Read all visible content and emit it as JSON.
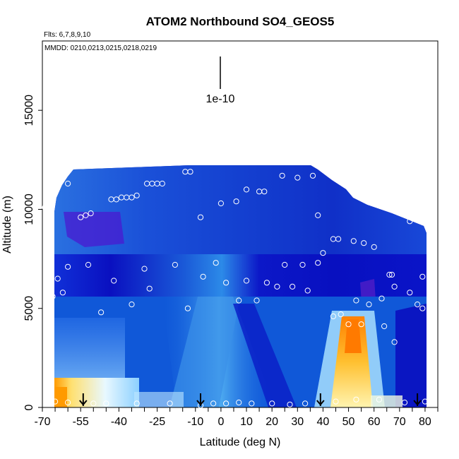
{
  "chart_data": {
    "type": "heatmap",
    "title": "ATOM2 Northbound SO4_GEOS5",
    "flights_note": "Flts: 6,7,8,9,10",
    "mmdd_note": "MMDD: 0210,0213,0215,0218,0219",
    "xlabel": "Latitude (deg N)",
    "ylabel": "Altitude (m)",
    "xlim": [
      -70,
      85
    ],
    "ylim": [
      0,
      18500
    ],
    "x_tick_labels": [
      "-70",
      "-55",
      "-40",
      "-25",
      "-10",
      "0",
      "10",
      "20",
      "30",
      "40",
      "50",
      "60",
      "70",
      "80"
    ],
    "x_ticks": [
      -70,
      -55,
      -40,
      -25,
      -10,
      0,
      10,
      20,
      30,
      40,
      50,
      60,
      70,
      80
    ],
    "y_tick_labels": [
      "0",
      "5000",
      "10000",
      "15000"
    ],
    "y_ticks": [
      0,
      5000,
      10000,
      15000
    ],
    "scale_bar_label": "1e-10",
    "grid": false,
    "colorscale": [
      "#0000c8",
      "#1e5fe6",
      "#4aa8f0",
      "#b8e8ff",
      "#ffffc8",
      "#ffd040",
      "#ff8c00",
      "#8a2be2"
    ],
    "profile_latitudes": [
      -54,
      -8,
      39,
      77
    ],
    "sample_points": [
      {
        "x": -68,
        "y": 200
      },
      {
        "x": -65,
        "y": 300
      },
      {
        "x": -60,
        "y": 250
      },
      {
        "x": -50,
        "y": 200
      },
      {
        "x": -45,
        "y": 200
      },
      {
        "x": -33,
        "y": 200
      },
      {
        "x": -20,
        "y": 200
      },
      {
        "x": -8,
        "y": 100
      },
      {
        "x": -3,
        "y": 200
      },
      {
        "x": 2,
        "y": 200
      },
      {
        "x": 7,
        "y": 250
      },
      {
        "x": 12,
        "y": 200
      },
      {
        "x": 20,
        "y": 200
      },
      {
        "x": 27,
        "y": 150
      },
      {
        "x": 33,
        "y": 200
      },
      {
        "x": 45,
        "y": 300
      },
      {
        "x": 53,
        "y": 400
      },
      {
        "x": 62,
        "y": 400
      },
      {
        "x": 72,
        "y": 250
      },
      {
        "x": 80,
        "y": 300
      },
      {
        "x": -68,
        "y": 5000
      },
      {
        "x": -66,
        "y": 5600
      },
      {
        "x": -62,
        "y": 5800
      },
      {
        "x": -47,
        "y": 4800
      },
      {
        "x": -35,
        "y": 5200
      },
      {
        "x": -28,
        "y": 6000
      },
      {
        "x": -13,
        "y": 5000
      },
      {
        "x": -7,
        "y": 6600
      },
      {
        "x": 2,
        "y": 6300
      },
      {
        "x": 7,
        "y": 5400
      },
      {
        "x": 10,
        "y": 6400
      },
      {
        "x": 14,
        "y": 5400
      },
      {
        "x": 18,
        "y": 6300
      },
      {
        "x": 22,
        "y": 6100
      },
      {
        "x": 28,
        "y": 6100
      },
      {
        "x": 34,
        "y": 5900
      },
      {
        "x": 44,
        "y": 4600
      },
      {
        "x": 47,
        "y": 4700
      },
      {
        "x": 50,
        "y": 4200
      },
      {
        "x": 53,
        "y": 5400
      },
      {
        "x": 55,
        "y": 4200
      },
      {
        "x": 58,
        "y": 5200
      },
      {
        "x": 63,
        "y": 5500
      },
      {
        "x": 64,
        "y": 4100
      },
      {
        "x": 68,
        "y": 6100
      },
      {
        "x": 68,
        "y": 3300
      },
      {
        "x": 74,
        "y": 5800
      },
      {
        "x": 77,
        "y": 5200
      },
      {
        "x": 79,
        "y": 5000
      },
      {
        "x": 82,
        "y": 4100
      },
      {
        "x": -68,
        "y": 6300
      },
      {
        "x": -64,
        "y": 6500
      },
      {
        "x": -60,
        "y": 7100
      },
      {
        "x": -52,
        "y": 7200
      },
      {
        "x": -42,
        "y": 6400
      },
      {
        "x": -30,
        "y": 7000
      },
      {
        "x": -18,
        "y": 7200
      },
      {
        "x": -2,
        "y": 7300
      },
      {
        "x": 25,
        "y": 7200
      },
      {
        "x": 32,
        "y": 7200
      },
      {
        "x": 38,
        "y": 7300
      },
      {
        "x": 40,
        "y": 7800
      },
      {
        "x": 44,
        "y": 8500
      },
      {
        "x": 46,
        "y": 8500
      },
      {
        "x": 52,
        "y": 8400
      },
      {
        "x": 56,
        "y": 8300
      },
      {
        "x": 60,
        "y": 8100
      },
      {
        "x": 66,
        "y": 6700
      },
      {
        "x": 67,
        "y": 6700
      },
      {
        "x": 74,
        "y": 9400
      },
      {
        "x": 79,
        "y": 6600
      },
      {
        "x": 82,
        "y": 8600
      },
      {
        "x": -69,
        "y": 10100
      },
      {
        "x": -68,
        "y": 10600
      },
      {
        "x": -55,
        "y": 9600
      },
      {
        "x": -53,
        "y": 9700
      },
      {
        "x": -51,
        "y": 9800
      },
      {
        "x": -43,
        "y": 10500
      },
      {
        "x": -41,
        "y": 10500
      },
      {
        "x": -39,
        "y": 10600
      },
      {
        "x": -37,
        "y": 10600
      },
      {
        "x": -35,
        "y": 10600
      },
      {
        "x": -33,
        "y": 10700
      },
      {
        "x": -29,
        "y": 11300
      },
      {
        "x": -27,
        "y": 11300
      },
      {
        "x": -25,
        "y": 11300
      },
      {
        "x": -23,
        "y": 11300
      },
      {
        "x": -14,
        "y": 11900
      },
      {
        "x": -12,
        "y": 11900
      },
      {
        "x": -8,
        "y": 9600
      },
      {
        "x": 0,
        "y": 10300
      },
      {
        "x": 6,
        "y": 10400
      },
      {
        "x": 10,
        "y": 11000
      },
      {
        "x": 15,
        "y": 10900
      },
      {
        "x": 17,
        "y": 10900
      },
      {
        "x": 24,
        "y": 11700
      },
      {
        "x": 30,
        "y": 11600
      },
      {
        "x": 36,
        "y": 11700
      },
      {
        "x": 38,
        "y": 9700
      },
      {
        "x": -62,
        "y": 11900
      },
      {
        "x": -60,
        "y": 11300
      }
    ]
  }
}
